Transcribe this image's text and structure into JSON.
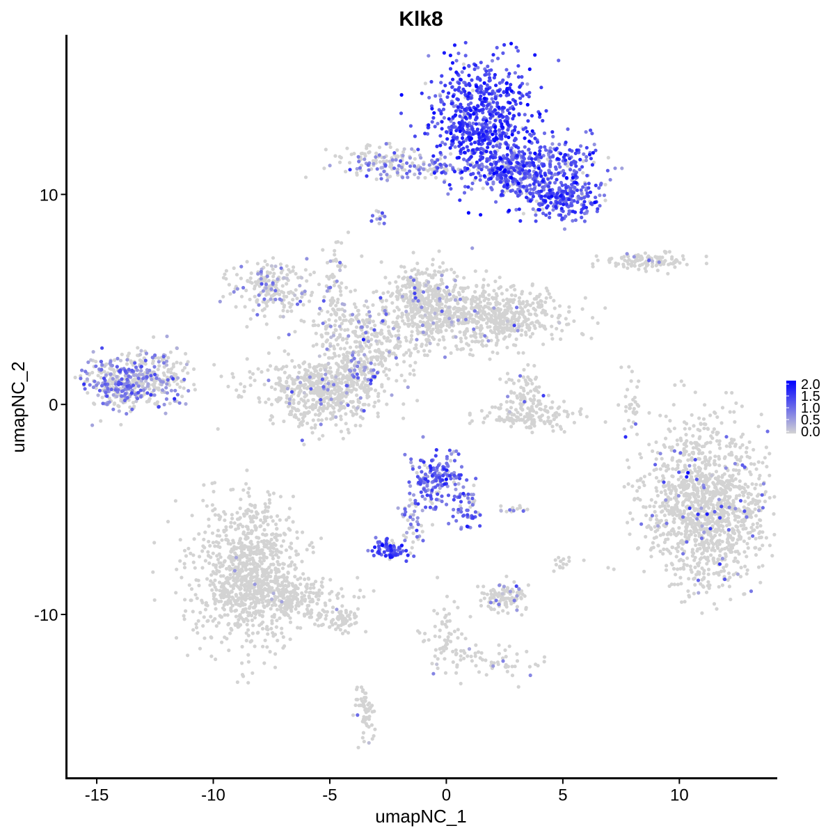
{
  "chart_data": {
    "type": "scatter",
    "title": "Klk8",
    "xlabel": "umapNC_1",
    "ylabel": "umapNC_2",
    "xlim": [
      -16.3,
      14.2
    ],
    "ylim": [
      -17.8,
      17.6
    ],
    "x_ticks": [
      -15,
      -10,
      -5,
      0,
      5,
      10
    ],
    "x_tick_labels": [
      "-15",
      "-10",
      "-5",
      "0",
      "5",
      "10"
    ],
    "y_ticks": [
      -10,
      0,
      10
    ],
    "y_tick_labels": [
      "-10",
      "0",
      "10"
    ],
    "grid": false,
    "legend": {
      "position": "right",
      "type": "colorbar",
      "min": 0.0,
      "max": 2.0,
      "labels": [
        "2.0",
        "1.5",
        "1.0",
        "0.5",
        "0.0"
      ],
      "low_color": "#D3D3D3",
      "high_color": "#0000FF"
    },
    "clusters": [
      {
        "x": 1.5,
        "y": 13.5,
        "sx": 1.1,
        "sy": 1.5,
        "n": 700,
        "expr": 1.35,
        "expr_prob": 0.95
      },
      {
        "x": 3.8,
        "y": 11.3,
        "sx": 1.3,
        "sy": 0.7,
        "n": 350,
        "expr": 1.15,
        "expr_prob": 0.9
      },
      {
        "x": 5.0,
        "y": 9.8,
        "sx": 0.9,
        "sy": 0.5,
        "n": 220,
        "expr": 1.2,
        "expr_prob": 0.9
      },
      {
        "x": 2.5,
        "y": 11.0,
        "sx": 0.8,
        "sy": 0.5,
        "n": 100,
        "expr": 0.9,
        "expr_prob": 0.7
      },
      {
        "x": -3.0,
        "y": 11.5,
        "sx": 1.0,
        "sy": 0.4,
        "n": 110,
        "expr": 0.6,
        "expr_prob": 0.35
      },
      {
        "x": -1.0,
        "y": 11.3,
        "sx": 1.1,
        "sy": 0.25,
        "n": 70,
        "expr": 0.8,
        "expr_prob": 0.55
      },
      {
        "x": -2.8,
        "y": 8.8,
        "sx": 0.2,
        "sy": 0.2,
        "n": 12,
        "expr": 0.8,
        "expr_prob": 0.7
      },
      {
        "x": 8.6,
        "y": 6.8,
        "sx": 1.0,
        "sy": 0.2,
        "n": 110,
        "expr": 0.5,
        "expr_prob": 0.15
      },
      {
        "x": -7.5,
        "y": 5.5,
        "sx": 0.9,
        "sy": 0.6,
        "n": 200,
        "expr": 0.6,
        "expr_prob": 0.2
      },
      {
        "x": -4.8,
        "y": 5.0,
        "sx": 0.3,
        "sy": 1.5,
        "n": 80,
        "expr": 0.6,
        "expr_prob": 0.15
      },
      {
        "x": -1.0,
        "y": 5.2,
        "sx": 0.8,
        "sy": 0.8,
        "n": 300,
        "expr": 0.6,
        "expr_prob": 0.1
      },
      {
        "x": 1.5,
        "y": 4.2,
        "sx": 1.8,
        "sy": 0.7,
        "n": 700,
        "expr": 0.5,
        "expr_prob": 0.03
      },
      {
        "x": -3.5,
        "y": 3.2,
        "sx": 1.2,
        "sy": 0.9,
        "n": 300,
        "expr": 0.6,
        "expr_prob": 0.12
      },
      {
        "x": -5.2,
        "y": 0.6,
        "sx": 1.3,
        "sy": 0.8,
        "n": 600,
        "expr": 0.6,
        "expr_prob": 0.08
      },
      {
        "x": -3.5,
        "y": 1.5,
        "sx": 0.5,
        "sy": 0.6,
        "n": 80,
        "expr": 0.8,
        "expr_prob": 0.3
      },
      {
        "x": -14.0,
        "y": 1.0,
        "sx": 0.8,
        "sy": 0.6,
        "n": 300,
        "expr": 0.75,
        "expr_prob": 0.55
      },
      {
        "x": -12.5,
        "y": 1.4,
        "sx": 0.8,
        "sy": 0.7,
        "n": 220,
        "expr": 0.65,
        "expr_prob": 0.4
      },
      {
        "x": 3.3,
        "y": 0.5,
        "sx": 0.5,
        "sy": 0.7,
        "n": 90,
        "expr": 0.5,
        "expr_prob": 0.03
      },
      {
        "x": 3.5,
        "y": -0.6,
        "sx": 1.2,
        "sy": 0.3,
        "n": 120,
        "expr": 0.5,
        "expr_prob": 0.02
      },
      {
        "x": 8.0,
        "y": -0.2,
        "sx": 0.2,
        "sy": 0.8,
        "n": 30,
        "expr": 0.5,
        "expr_prob": 0.02
      },
      {
        "x": 11.2,
        "y": -4.8,
        "sx": 1.3,
        "sy": 1.9,
        "n": 1300,
        "expr": 0.9,
        "expr_prob": 0.04
      },
      {
        "x": -0.4,
        "y": -3.6,
        "sx": 0.6,
        "sy": 0.7,
        "n": 180,
        "expr": 1.0,
        "expr_prob": 0.9
      },
      {
        "x": 0.9,
        "y": -5.0,
        "sx": 0.3,
        "sy": 0.5,
        "n": 50,
        "expr": 0.9,
        "expr_prob": 0.8
      },
      {
        "x": -1.5,
        "y": -5.8,
        "sx": 0.3,
        "sy": 0.6,
        "n": 40,
        "expr": 0.8,
        "expr_prob": 0.7
      },
      {
        "x": -2.5,
        "y": -6.9,
        "sx": 0.4,
        "sy": 0.25,
        "n": 80,
        "expr": 1.2,
        "expr_prob": 0.95
      },
      {
        "x": 3.0,
        "y": -5.0,
        "sx": 0.4,
        "sy": 0.1,
        "n": 15,
        "expr": 0.7,
        "expr_prob": 0.3
      },
      {
        "x": -8.5,
        "y": -8.0,
        "sx": 1.1,
        "sy": 1.7,
        "n": 900,
        "expr": 0.5,
        "expr_prob": 0.005
      },
      {
        "x": -6.8,
        "y": -9.2,
        "sx": 1.3,
        "sy": 0.5,
        "n": 250,
        "expr": 0.5,
        "expr_prob": 0.01
      },
      {
        "x": -4.6,
        "y": -10.3,
        "sx": 0.6,
        "sy": 0.3,
        "n": 60,
        "expr": 0.5,
        "expr_prob": 0.01
      },
      {
        "x": -3.5,
        "y": -14.5,
        "sx": 0.25,
        "sy": 0.8,
        "n": 60,
        "expr": 0.5,
        "expr_prob": 0.02
      },
      {
        "x": 2.5,
        "y": -9.2,
        "sx": 0.5,
        "sy": 0.4,
        "n": 110,
        "expr": 0.7,
        "expr_prob": 0.12
      },
      {
        "x": 0.0,
        "y": -11.0,
        "sx": 0.5,
        "sy": 1.0,
        "n": 60,
        "expr": 0.5,
        "expr_prob": 0.03
      },
      {
        "x": 1.8,
        "y": -12.2,
        "sx": 1.1,
        "sy": 0.4,
        "n": 60,
        "expr": 0.5,
        "expr_prob": 0.03
      },
      {
        "x": 5.0,
        "y": -7.5,
        "sx": 0.3,
        "sy": 0.2,
        "n": 15,
        "expr": 0.5,
        "expr_prob": 0.02
      }
    ]
  }
}
